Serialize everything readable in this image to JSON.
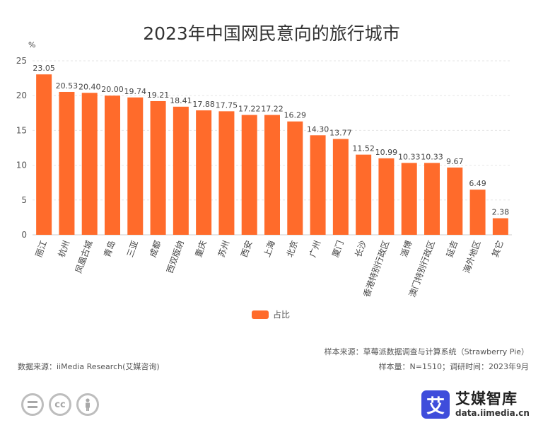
{
  "chart_data": {
    "type": "bar",
    "title": "2023年中国网民意向的旅行城市",
    "ylabel": "%",
    "xlabel": "",
    "ylim": [
      0,
      25
    ],
    "yticks": [
      0,
      5,
      10,
      15,
      20,
      25
    ],
    "grid": true,
    "legend_position": "bottom-center",
    "categories": [
      "丽江",
      "杭州",
      "凤凰古城",
      "青岛",
      "三亚",
      "成都",
      "西双版纳",
      "重庆",
      "苏州",
      "西安",
      "上海",
      "北京",
      "广州",
      "厦门",
      "长沙",
      "香港特别行政区",
      "淄博",
      "澳门特别行政区",
      "延吉",
      "海外地区",
      "其它"
    ],
    "series": [
      {
        "name": "占比",
        "color": "#ff6b2b",
        "values": [
          23.05,
          20.53,
          20.4,
          20.0,
          19.74,
          19.21,
          18.41,
          17.88,
          17.75,
          17.22,
          17.22,
          16.29,
          14.3,
          13.77,
          11.52,
          10.99,
          10.33,
          10.33,
          9.67,
          6.49,
          2.38
        ],
        "labels": [
          "23.05",
          "20.53",
          "20.40",
          "20.00",
          "19.74",
          "19.21",
          "18.41",
          "17.88",
          "17.75",
          "17.22",
          "17.22",
          "16.29",
          "14.30",
          "13.77",
          "11.52",
          "10.99",
          "10.33",
          "10.33",
          "9.67",
          "6.49",
          "2.38"
        ]
      }
    ]
  },
  "footer": {
    "sample_source": "样本来源：草莓派数据调查与计算系统（Strawberry Pie）",
    "data_source": "数据来源：iiMedia Research(艾媒咨询)",
    "sample_info": "样本量：N=1510；调研时间：2023年9月"
  },
  "license_icons": [
    "equal-icon",
    "cc-icon",
    "person-icon"
  ],
  "brand": {
    "logo_char": "艾",
    "name": "艾媒智库",
    "url": "data.iimedia.cn",
    "color": "#3f4ddb"
  }
}
